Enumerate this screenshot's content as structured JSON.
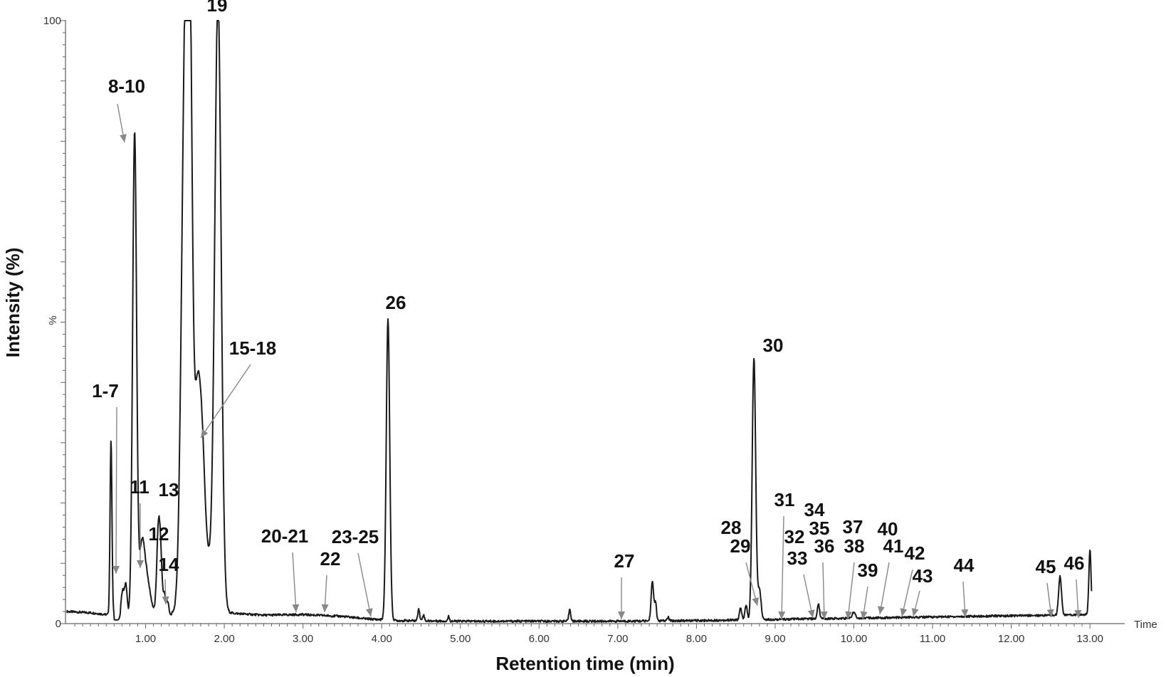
{
  "chart_data": {
    "type": "line",
    "title": "",
    "xlabel": "Retention time (min)",
    "ylabel": "Intensity (%)",
    "x_axis_tag": "Time",
    "y_axis_tag": "%",
    "xlim": [
      0,
      13.1
    ],
    "ylim": [
      0,
      100
    ],
    "x_ticks": [
      "1.00",
      "2.00",
      "3.00",
      "4.00",
      "5.00",
      "6.00",
      "7.00",
      "8.00",
      "9.00",
      "10.00",
      "11.00",
      "12.00",
      "13.00"
    ],
    "y_ticks": [
      "0",
      "100"
    ],
    "baseline": [
      [
        0.0,
        2.0
      ],
      [
        0.3,
        1.8
      ],
      [
        0.5,
        1.5
      ],
      [
        1.4,
        1.7
      ],
      [
        2.0,
        1.8
      ],
      [
        2.5,
        1.4
      ],
      [
        3.0,
        1.5
      ],
      [
        3.5,
        1.2
      ],
      [
        3.8,
        0.8
      ],
      [
        4.2,
        0.5
      ],
      [
        5.0,
        0.4
      ],
      [
        6.0,
        0.4
      ],
      [
        7.0,
        0.4
      ],
      [
        8.0,
        0.5
      ],
      [
        9.0,
        0.7
      ],
      [
        10.0,
        0.9
      ],
      [
        11.0,
        1.1
      ],
      [
        12.0,
        1.3
      ],
      [
        12.55,
        1.4
      ],
      [
        13.02,
        1.5
      ]
    ],
    "peaks": [
      [
        0.56,
        29,
        0.012
      ],
      [
        0.71,
        4,
        0.02
      ],
      [
        0.75,
        4.5,
        0.015
      ],
      [
        0.86,
        80,
        0.025
      ],
      [
        0.95,
        8,
        0.03
      ],
      [
        1.0,
        7,
        0.05
      ],
      [
        1.16,
        12,
        0.02
      ],
      [
        1.19,
        9,
        0.02
      ],
      [
        1.24,
        3,
        0.015
      ],
      [
        1.28,
        2,
        0.015
      ],
      [
        1.5,
        86,
        0.045
      ],
      [
        1.56,
        83,
        0.035
      ],
      [
        1.65,
        26,
        0.035
      ],
      [
        1.71,
        24,
        0.04
      ],
      [
        1.8,
        8,
        0.09
      ],
      [
        1.92,
        99,
        0.04
      ],
      [
        4.08,
        50,
        0.022
      ],
      [
        4.47,
        2,
        0.012
      ],
      [
        4.53,
        1,
        0.012
      ],
      [
        4.85,
        0.8,
        0.01
      ],
      [
        6.39,
        2,
        0.012
      ],
      [
        7.44,
        6.5,
        0.016
      ],
      [
        7.48,
        3,
        0.012
      ],
      [
        7.64,
        0.6,
        0.012
      ],
      [
        8.56,
        2,
        0.014
      ],
      [
        8.63,
        2.5,
        0.014
      ],
      [
        8.73,
        43.5,
        0.022
      ],
      [
        8.8,
        5,
        0.02
      ],
      [
        9.55,
        2.5,
        0.014
      ],
      [
        10.0,
        1,
        0.02
      ],
      [
        12.62,
        6.5,
        0.018
      ],
      [
        13.0,
        10.8,
        0.014
      ]
    ],
    "labels": [
      {
        "text": "1-7",
        "arrow": true
      },
      {
        "text": "8-10",
        "arrow": true
      },
      {
        "text": "11",
        "arrow": true
      },
      {
        "text": "12",
        "arrow": false
      },
      {
        "text": "13",
        "arrow": false
      },
      {
        "text": "14",
        "arrow": true
      },
      {
        "text": "15-18",
        "arrow": true
      },
      {
        "text": "19",
        "arrow": false
      },
      {
        "text": "20-21",
        "arrow": true
      },
      {
        "text": "22",
        "arrow": true
      },
      {
        "text": "23-25",
        "arrow": true
      },
      {
        "text": "26",
        "arrow": false
      },
      {
        "text": "27",
        "arrow": true
      },
      {
        "text": "28",
        "arrow": false
      },
      {
        "text": "29",
        "arrow": true
      },
      {
        "text": "30",
        "arrow": false
      },
      {
        "text": "31",
        "arrow": true
      },
      {
        "text": "32",
        "arrow": false
      },
      {
        "text": "33",
        "arrow": true
      },
      {
        "text": "34",
        "arrow": false
      },
      {
        "text": "35",
        "arrow": false
      },
      {
        "text": "36",
        "arrow": true
      },
      {
        "text": "37",
        "arrow": false
      },
      {
        "text": "38",
        "arrow": true
      },
      {
        "text": "39",
        "arrow": true
      },
      {
        "text": "40",
        "arrow": false
      },
      {
        "text": "41",
        "arrow": true
      },
      {
        "text": "42",
        "arrow": true
      },
      {
        "text": "43",
        "arrow": true
      },
      {
        "text": "44",
        "arrow": true
      },
      {
        "text": "45",
        "arrow": true
      },
      {
        "text": "46",
        "arrow": true
      }
    ]
  }
}
